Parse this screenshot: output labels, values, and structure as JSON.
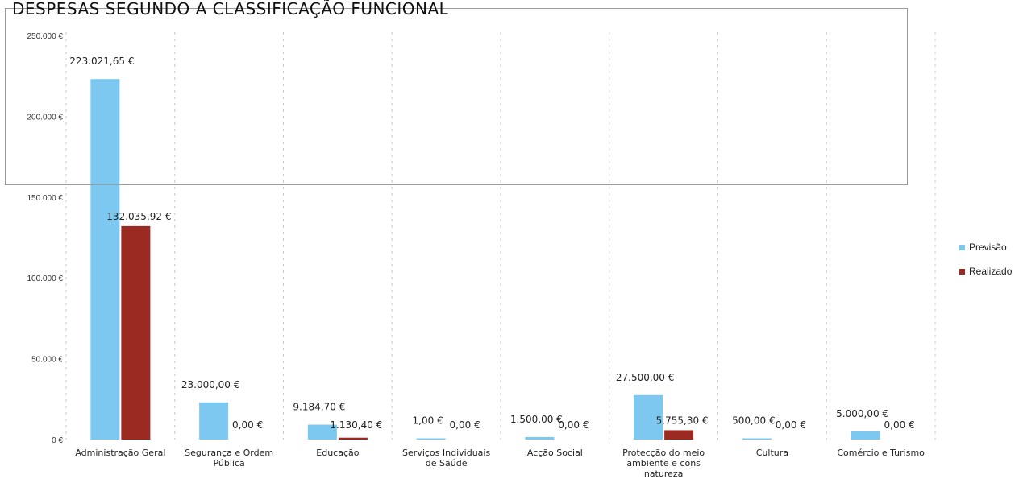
{
  "chart_data": {
    "type": "bar",
    "title": "DESPESAS SEGUNDO A CLASSIFICAÇÃO FUNCIONAL",
    "categories": [
      "Administração Geral",
      "Segurança e Ordem Pública",
      "Educação",
      "Serviços Individuais de Saúde",
      "Acção Social",
      "Protecção do meio ambiente e cons natureza",
      "Cultura",
      "Comércio e Turismo"
    ],
    "series": [
      {
        "name": "Previsão",
        "color": "#7dc8f0",
        "values": [
          223021.65,
          23000.0,
          9184.7,
          1.0,
          1500.0,
          27500.0,
          500.0,
          5000.0
        ],
        "labels": [
          "223.021,65 €",
          "23.000,00 €",
          "9.184,70 €",
          "1,00 €",
          "1.500,00 €",
          "27.500,00 €",
          "500,00 €",
          "5.000,00 €"
        ]
      },
      {
        "name": "Realizado",
        "color": "#9b2a22",
        "values": [
          132035.92,
          0.0,
          1130.4,
          0.0,
          0.0,
          5755.3,
          0.0,
          0.0
        ],
        "labels": [
          "132.035,92 €",
          "0,00 €",
          "1.130,40 €",
          "0,00 €",
          "0,00 €",
          "5.755,30 €",
          "0,00 €",
          "0,00 €"
        ]
      }
    ],
    "ylim": [
      0,
      250000
    ],
    "yticks": [
      0,
      50000,
      100000,
      150000,
      200000,
      250000
    ],
    "ytick_labels": [
      "0 €",
      "50.000 €",
      "100.000 €",
      "150.000 €",
      "200.000 €",
      "250.000 €"
    ],
    "grid": "vertical dashed",
    "legend_position": "right"
  }
}
